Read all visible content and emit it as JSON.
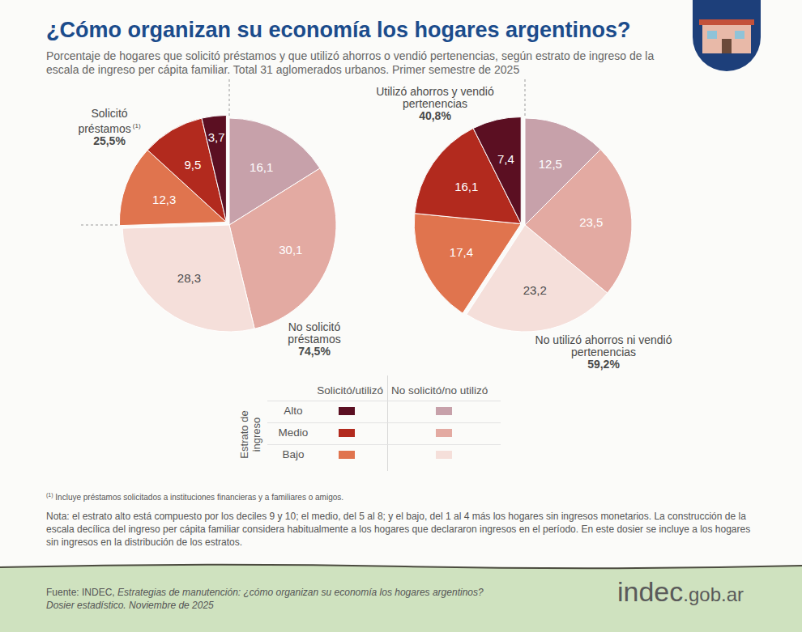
{
  "title": "¿Cómo organizan su economía los hogares argentinos?",
  "subtitle": "Porcentaje de hogares que solicitó préstamos y que utilizó ahorros o vendió pertenencias, según estrato de ingreso de la escala de ingreso per cápita familiar. Total 31 aglomerados urbanos. Primer semestre de 2025",
  "chart_data": [
    {
      "type": "pie",
      "data_labels": true,
      "series": [
        {
          "name": "No solicitó préstamos",
          "total": 74.5,
          "total_label": "74,5%",
          "values": [
            16.1,
            30.1,
            28.3
          ],
          "value_labels": [
            "16,1",
            "30,1",
            "28,3"
          ],
          "colors": [
            "#c7a1aa",
            "#e3aaa2",
            "#f5dfda"
          ]
        },
        {
          "name": "Solicitó préstamos",
          "note_mark": "(1)",
          "total": 25.5,
          "total_label": "25,5%",
          "values": [
            12.3,
            9.5,
            3.7
          ],
          "value_labels": [
            "12,3",
            "9,5",
            "3,7"
          ],
          "colors": [
            "#e0744e",
            "#b22a1e",
            "#5b0f22"
          ]
        }
      ]
    },
    {
      "type": "pie",
      "data_labels": true,
      "series": [
        {
          "name": "No utilizó ahorros ni vendió pertenencias",
          "total": 59.2,
          "total_label": "59,2%",
          "values": [
            12.5,
            23.5,
            23.2
          ],
          "value_labels": [
            "12,5",
            "23,5",
            "23,2"
          ],
          "colors": [
            "#c7a1aa",
            "#e3aaa2",
            "#f5dfda"
          ]
        },
        {
          "name": "Utilizó ahorros y vendió pertenencias",
          "total": 40.8,
          "total_label": "40,8%",
          "values": [
            17.4,
            16.1,
            7.4
          ],
          "value_labels": [
            "17,4",
            "16,1",
            "7,4"
          ],
          "colors": [
            "#e0744e",
            "#b22a1e",
            "#5b0f22"
          ]
        }
      ]
    }
  ],
  "legend_table": {
    "title": "Estrato de ingreso",
    "columns": [
      "Solicitó/utilizó",
      "No solicitó/no utilizó"
    ],
    "rows": [
      {
        "label": "Alto",
        "colors": [
          "#5b0f22",
          "#c7a1aa"
        ]
      },
      {
        "label": "Medio",
        "colors": [
          "#b22a1e",
          "#e3aaa2"
        ]
      },
      {
        "label": "Bajo",
        "colors": [
          "#e0744e",
          "#f5dfda"
        ]
      }
    ]
  },
  "footnote": {
    "mark": "(1)",
    "text": "Incluye préstamos solicitados a instituciones financieras y a familiares o amigos."
  },
  "note": "Nota: el estrato alto está compuesto por los deciles 9 y 10; el medio, del 5 al 8; y el bajo, del 1 al 4 más los hogares sin ingresos monetarios. La construcción de la escala decílica del ingreso per cápita familiar considera habitualmente a los hogares que declararon ingresos en el período. En este dosier se incluye a los hogares sin ingresos en la distribución de los estratos.",
  "source": {
    "label": "Fuente: INDEC,",
    "title": "Estrategias de manutención: ¿cómo organizan su economía los hogares argentinos?",
    "detail": "Dosier estadístico. Noviembre de 2025"
  },
  "logo": "indec.gob.ar"
}
